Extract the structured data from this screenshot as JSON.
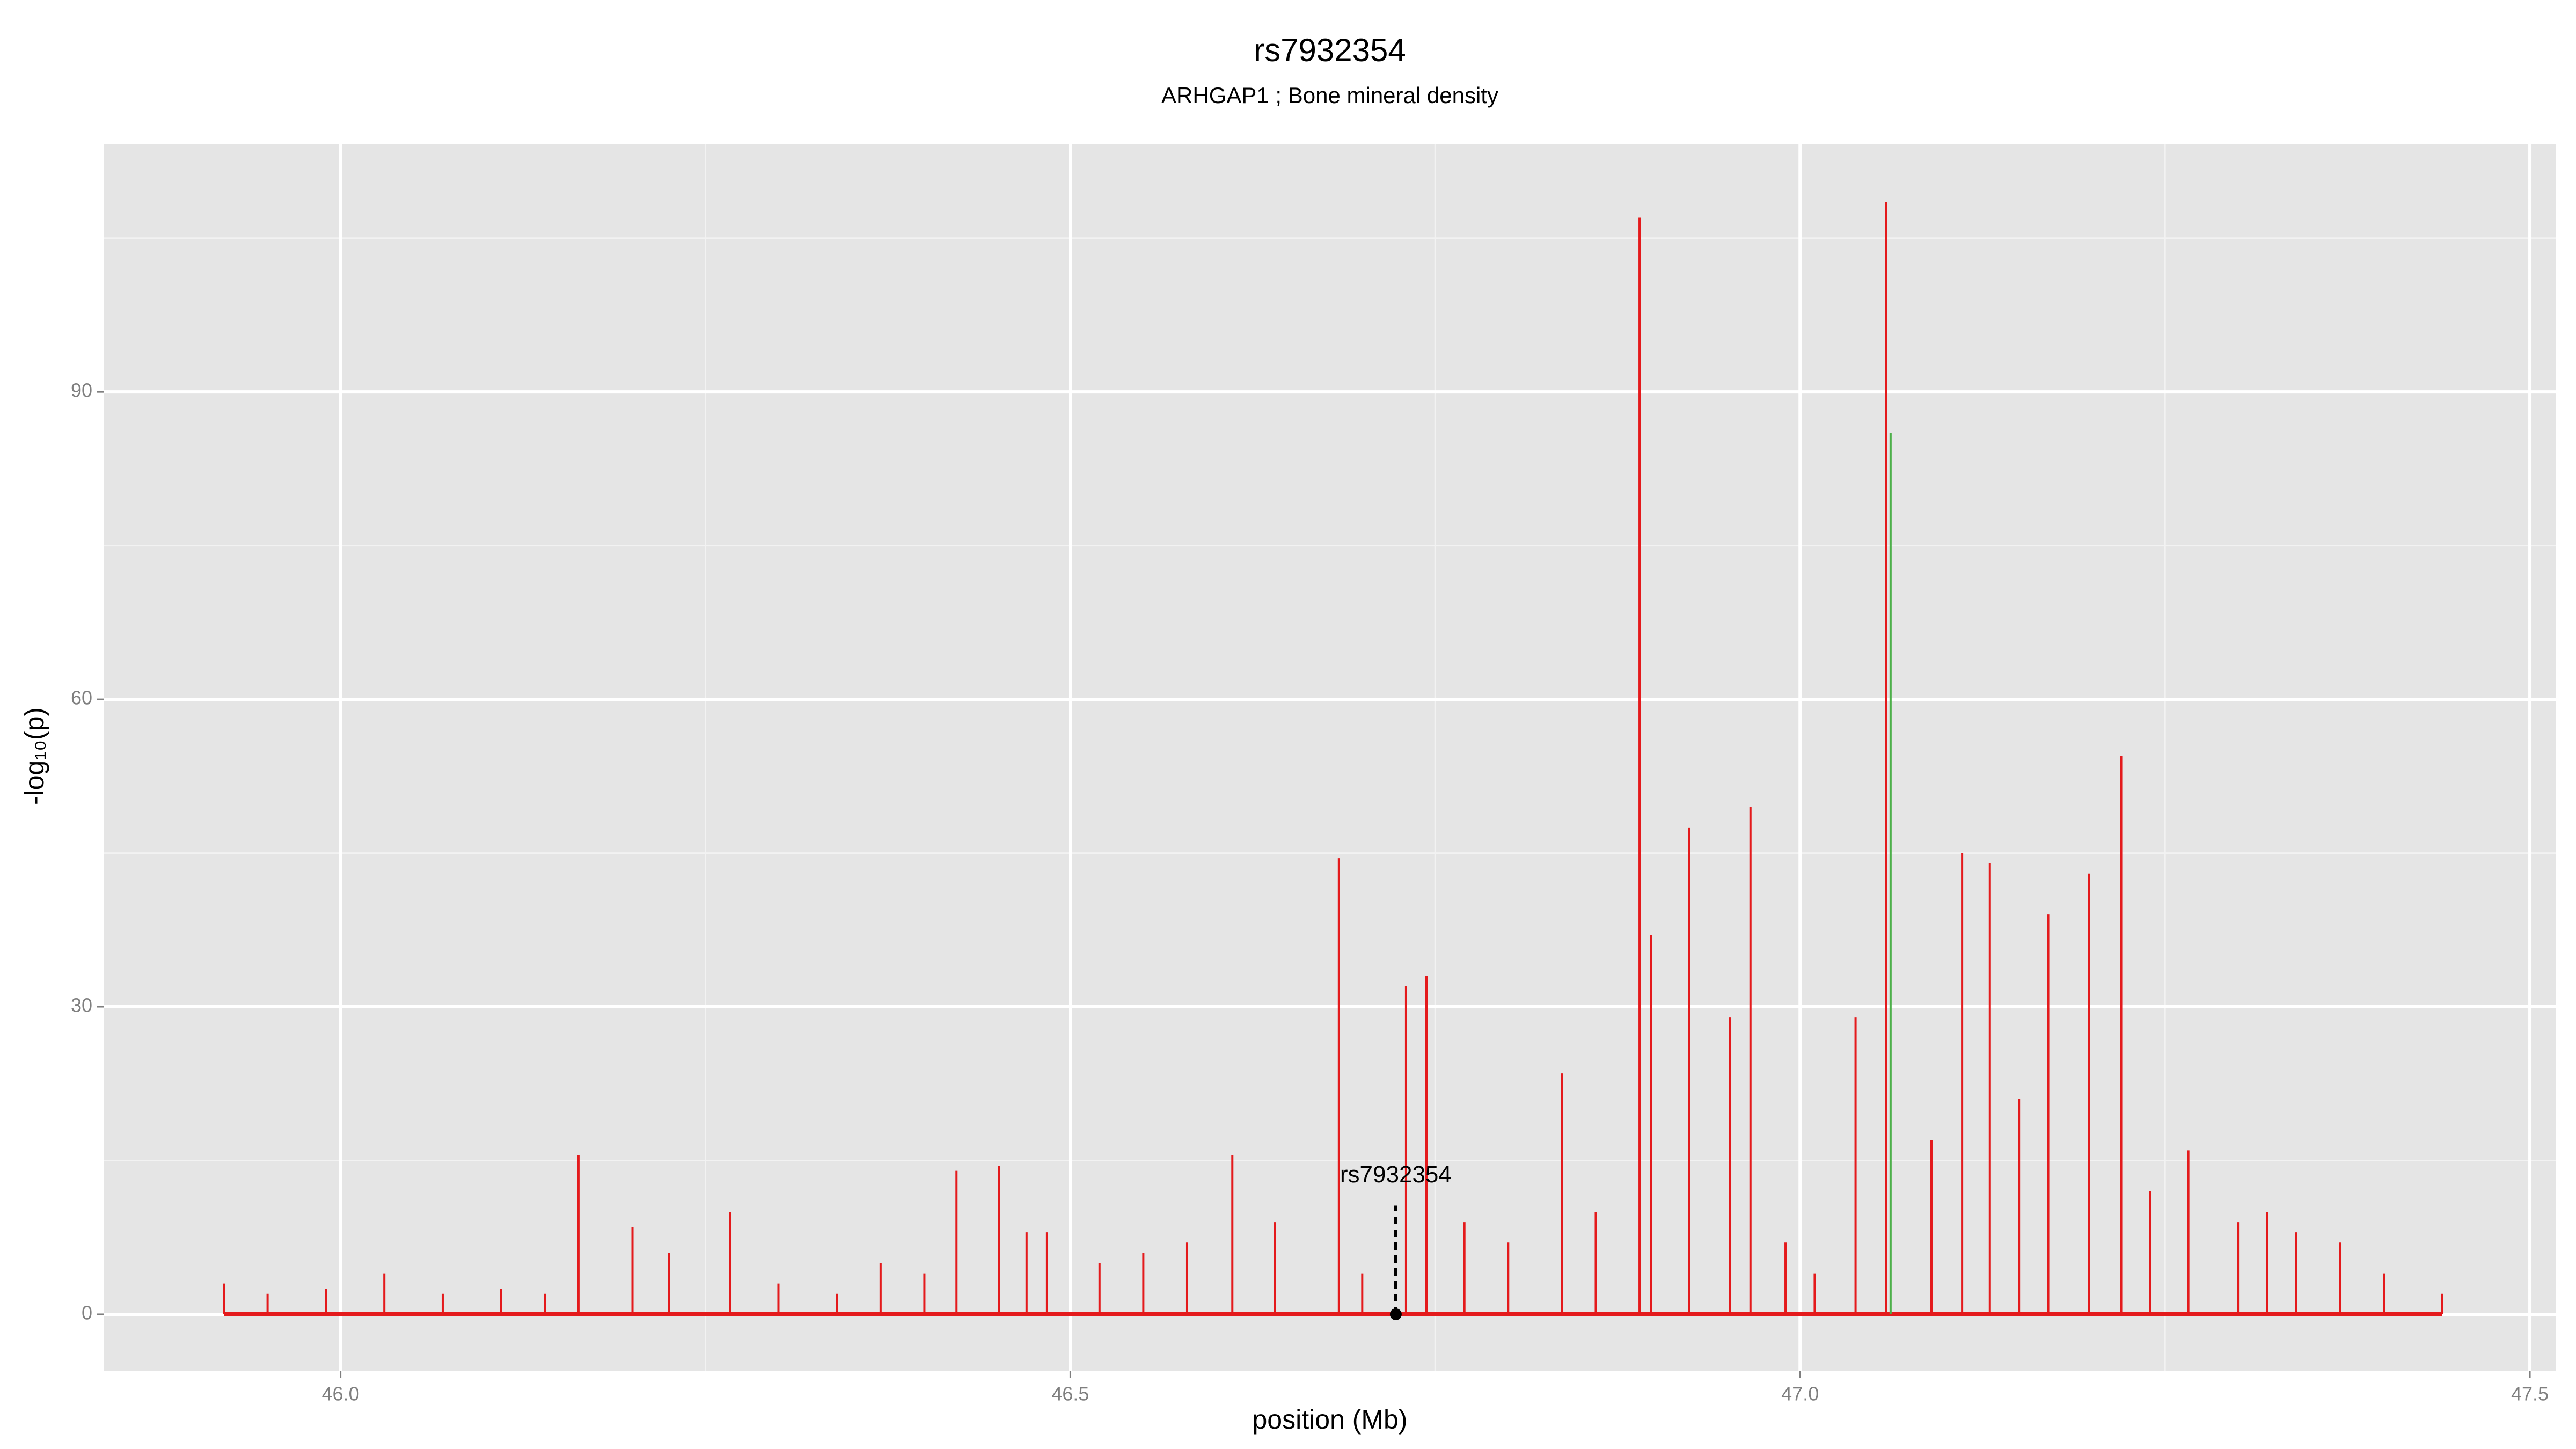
{
  "chart_data": {
    "type": "spike",
    "title": "rs7932354",
    "subtitle": "ARHGAP1 ; Bone mineral density",
    "x_label": "position (Mb)",
    "y_label": "-log₁₀(p)",
    "xlim": [
      45.838,
      47.518
    ],
    "ylim": [
      -5.5,
      114.2
    ],
    "xticks": [
      {
        "value": 46,
        "label": "46.0"
      },
      46.5,
      {
        "value": 47,
        "label": "47.0"
      },
      47.5
    ],
    "yticks": [
      0,
      30,
      60,
      90
    ],
    "x_minor_ticks": [
      46.25,
      46.75,
      47.25
    ],
    "y_minor_ticks": [
      15,
      45,
      75,
      105
    ],
    "grid": true,
    "background": "#e5e5e5",
    "series": [
      {
        "color": "#e41a1c",
        "x": [
          45.92,
          45.95,
          45.99,
          46.03,
          46.07,
          46.11,
          46.14,
          46.163,
          46.2,
          46.225,
          46.267,
          46.3,
          46.34,
          46.37,
          46.4,
          46.422,
          46.451,
          46.47,
          46.484,
          46.52,
          46.55,
          46.58,
          46.611,
          46.64,
          46.684,
          46.7,
          46.73,
          46.744,
          46.77,
          46.8,
          46.837,
          46.86,
          46.89,
          46.898,
          46.924,
          46.952,
          46.966,
          46.99,
          47.01,
          47.038,
          47.059,
          47.09,
          47.111,
          47.13,
          47.15,
          47.17,
          47.198,
          47.22,
          47.24,
          47.266,
          47.3,
          47.32,
          47.34,
          47.37,
          47.4,
          47.44
        ],
        "values": [
          3,
          2,
          2.5,
          4,
          2,
          2.5,
          2,
          15.5,
          8.5,
          6,
          10,
          3,
          2,
          5,
          4,
          14,
          14.5,
          8,
          8,
          5,
          6,
          7,
          15.5,
          9,
          44.5,
          4,
          32,
          33,
          9,
          7,
          23.5,
          10,
          107,
          37,
          47.5,
          29,
          49.5,
          7,
          4,
          29,
          108.5,
          17,
          45,
          44,
          21,
          39,
          43,
          54.5,
          12,
          16,
          9,
          10,
          8,
          7,
          4,
          2
        ]
      },
      {
        "color": "#4daf4a",
        "x": [
          47.062
        ],
        "values": [
          86
        ]
      }
    ],
    "annotation": {
      "text": "rs7932354",
      "x": 46.723,
      "y": 0,
      "line_top": 10.6,
      "label_y": 13.5
    }
  }
}
